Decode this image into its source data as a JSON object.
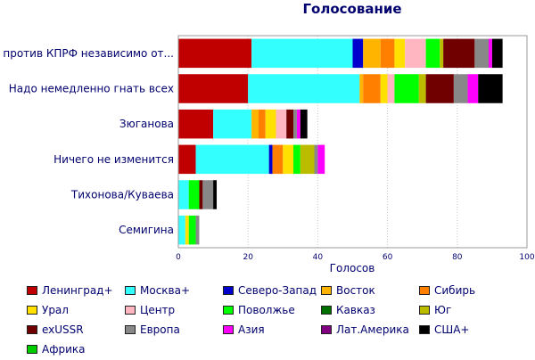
{
  "chart_data": {
    "type": "bar",
    "orientation": "horizontal",
    "stacked": true,
    "title": "Голосование",
    "xlabel": "Голосов",
    "ylabel": "",
    "xlim": [
      0,
      100
    ],
    "xticks": [
      0,
      20,
      40,
      60,
      80,
      100
    ],
    "grid": true,
    "legend_position": "bottom",
    "categories": [
      "Я против КПРФ независимо от...",
      "Надо немедленно гнать всех",
      "Зюганова",
      "Ничего не изменится",
      "Тихонова/Куваева",
      "Семигина"
    ],
    "series": [
      {
        "name": "Ленинград+",
        "color": "#c00000",
        "values": [
          21,
          20,
          10,
          5,
          0,
          0
        ]
      },
      {
        "name": "Москва+",
        "color": "#33ffff",
        "values": [
          29,
          32,
          11,
          21,
          3,
          2
        ]
      },
      {
        "name": "Северо-Запад",
        "color": "#0000cc",
        "values": [
          3,
          0,
          0,
          1,
          0,
          0
        ]
      },
      {
        "name": "Восток",
        "color": "#ffb400",
        "values": [
          5,
          1,
          2,
          0,
          0,
          0
        ]
      },
      {
        "name": "Сибирь",
        "color": "#ff8000",
        "values": [
          4,
          5,
          2,
          3,
          0,
          0
        ]
      },
      {
        "name": "Урал",
        "color": "#ffe000",
        "values": [
          3,
          2,
          3,
          3,
          0,
          1
        ]
      },
      {
        "name": "Центр",
        "color": "#ffb6c1",
        "values": [
          6,
          2,
          3,
          0,
          0,
          0
        ]
      },
      {
        "name": "Поволжье",
        "color": "#00ff00",
        "values": [
          4,
          7,
          0,
          2,
          3,
          2
        ]
      },
      {
        "name": "Кавказ",
        "color": "#007000",
        "values": [
          0,
          0,
          0,
          0,
          0,
          0
        ]
      },
      {
        "name": "Юг",
        "color": "#bbbb00",
        "values": [
          1,
          2,
          0,
          4,
          0,
          0
        ]
      },
      {
        "name": "exUSSR",
        "color": "#700000",
        "values": [
          9,
          8,
          2,
          0,
          1,
          0
        ]
      },
      {
        "name": "Европа",
        "color": "#888888",
        "values": [
          4,
          4,
          1,
          1,
          3,
          1
        ]
      },
      {
        "name": "Азия",
        "color": "#ff00ff",
        "values": [
          1,
          3,
          1,
          2,
          0,
          0
        ]
      },
      {
        "name": "Лат.Америка",
        "color": "#800080",
        "values": [
          0,
          0,
          0,
          0,
          0,
          0
        ]
      },
      {
        "name": "США+",
        "color": "#000000",
        "values": [
          3,
          7,
          2,
          0,
          1,
          0
        ]
      },
      {
        "name": "Африка",
        "color": "#00cc00",
        "values": [
          0,
          0,
          0,
          0,
          0,
          0
        ]
      }
    ]
  }
}
